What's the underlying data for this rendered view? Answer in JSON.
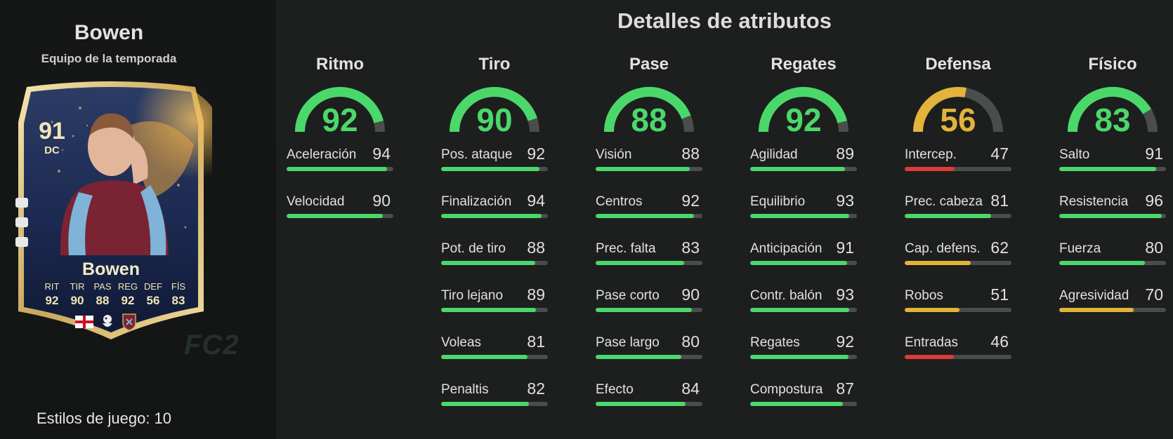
{
  "player": {
    "name": "Bowen",
    "subtitle": "Equipo de la temporada",
    "card": {
      "rating": "91",
      "position": "DC",
      "name": "Bowen",
      "stats": [
        {
          "label": "RIT",
          "value": "92"
        },
        {
          "label": "TIR",
          "value": "90"
        },
        {
          "label": "PAS",
          "value": "88"
        },
        {
          "label": "REG",
          "value": "92"
        },
        {
          "label": "DEF",
          "value": "56"
        },
        {
          "label": "FÍS",
          "value": "83"
        }
      ],
      "icons": [
        "england-flag-icon",
        "premier-league-icon",
        "west-ham-crest-icon"
      ]
    },
    "playstyles_label": "Estilos de juego: 10"
  },
  "watermark": "FC2",
  "section_title": "Detalles de atributos",
  "colors": {
    "high": "#4bd86b",
    "mid": "#e3b33b",
    "low": "#e03a3a",
    "track": "#4b4d4c"
  },
  "groups": [
    {
      "title": "Ritmo",
      "value": 92,
      "stats": [
        {
          "label": "Aceleración",
          "value": 94
        },
        {
          "label": "Velocidad",
          "value": 90
        }
      ]
    },
    {
      "title": "Tiro",
      "value": 90,
      "stats": [
        {
          "label": "Pos. ataque",
          "value": 92
        },
        {
          "label": "Finalización",
          "value": 94
        },
        {
          "label": "Pot. de tiro",
          "value": 88
        },
        {
          "label": "Tiro lejano",
          "value": 89
        },
        {
          "label": "Voleas",
          "value": 81
        },
        {
          "label": "Penaltis",
          "value": 82
        }
      ]
    },
    {
      "title": "Pase",
      "value": 88,
      "stats": [
        {
          "label": "Visión",
          "value": 88
        },
        {
          "label": "Centros",
          "value": 92
        },
        {
          "label": "Prec. falta",
          "value": 83
        },
        {
          "label": "Pase corto",
          "value": 90
        },
        {
          "label": "Pase largo",
          "value": 80
        },
        {
          "label": "Efecto",
          "value": 84
        }
      ]
    },
    {
      "title": "Regates",
      "value": 92,
      "stats": [
        {
          "label": "Agilidad",
          "value": 89
        },
        {
          "label": "Equilibrio",
          "value": 93
        },
        {
          "label": "Anticipación",
          "value": 91
        },
        {
          "label": "Contr. balón",
          "value": 93
        },
        {
          "label": "Regates",
          "value": 92
        },
        {
          "label": "Compostura",
          "value": 87
        }
      ]
    },
    {
      "title": "Defensa",
      "value": 56,
      "stats": [
        {
          "label": "Intercep.",
          "value": 47
        },
        {
          "label": "Prec. cabeza",
          "value": 81
        },
        {
          "label": "Cap. defens.",
          "value": 62
        },
        {
          "label": "Robos",
          "value": 51
        },
        {
          "label": "Entradas",
          "value": 46
        }
      ]
    },
    {
      "title": "Físico",
      "value": 83,
      "stats": [
        {
          "label": "Salto",
          "value": 91
        },
        {
          "label": "Resistencia",
          "value": 96
        },
        {
          "label": "Fuerza",
          "value": 80
        },
        {
          "label": "Agresividad",
          "value": 70
        }
      ]
    }
  ]
}
